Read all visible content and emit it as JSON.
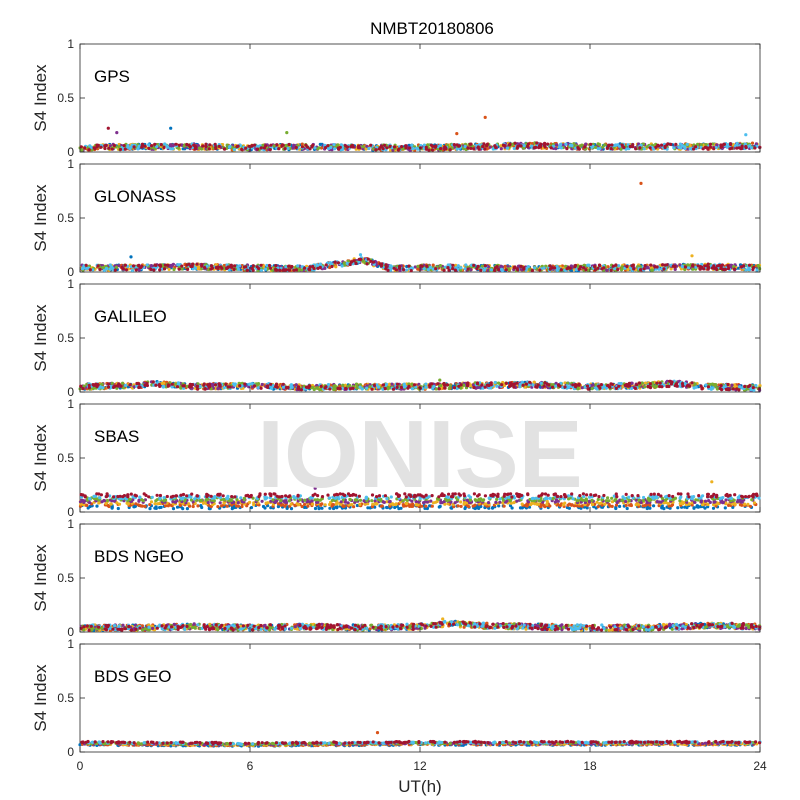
{
  "chart_data": {
    "type": "scatter",
    "title": "NMBT20180806",
    "xlabel": "UT(h)",
    "ylabel": "S4 Index",
    "xlim": [
      0,
      24
    ],
    "ylim": [
      0,
      1
    ],
    "xticks": [
      "0",
      "6",
      "12",
      "18",
      "24"
    ],
    "yticks": [
      "0",
      "0.5",
      "1"
    ],
    "grid": false,
    "watermark": "IONISE",
    "series_colors": [
      "#0072bd",
      "#d95319",
      "#edb120",
      "#7e2f8e",
      "#77ac30",
      "#4dbeee",
      "#a2142f"
    ],
    "panels": [
      {
        "name": "GPS",
        "baseline": [
          [
            0,
            0.05
          ],
          [
            2,
            0.06
          ],
          [
            4,
            0.06
          ],
          [
            6,
            0.05
          ],
          [
            8,
            0.06
          ],
          [
            10,
            0.05
          ],
          [
            12,
            0.05
          ],
          [
            14,
            0.06
          ],
          [
            16,
            0.07
          ],
          [
            18,
            0.06
          ],
          [
            20,
            0.06
          ],
          [
            22,
            0.06
          ],
          [
            24,
            0.07
          ]
        ],
        "outliers": [
          [
            1,
            0.22,
            6
          ],
          [
            3.2,
            0.22,
            0
          ],
          [
            7.3,
            0.18,
            4
          ],
          [
            13.3,
            0.17,
            1
          ],
          [
            14.3,
            0.32,
            1
          ],
          [
            1.3,
            0.18,
            3
          ],
          [
            23.5,
            0.16,
            5
          ]
        ]
      },
      {
        "name": "GLONASS",
        "baseline": [
          [
            0,
            0.05
          ],
          [
            2,
            0.05
          ],
          [
            4,
            0.06
          ],
          [
            6,
            0.05
          ],
          [
            8,
            0.04
          ],
          [
            9,
            0.08
          ],
          [
            10,
            0.12
          ],
          [
            11,
            0.04
          ],
          [
            12,
            0.05
          ],
          [
            14,
            0.05
          ],
          [
            16,
            0.04
          ],
          [
            18,
            0.05
          ],
          [
            20,
            0.05
          ],
          [
            22,
            0.06
          ],
          [
            24,
            0.05
          ]
        ],
        "outliers": [
          [
            19.8,
            0.82,
            1
          ],
          [
            1.8,
            0.14,
            0
          ],
          [
            9.9,
            0.16,
            5
          ],
          [
            21.6,
            0.15,
            2
          ]
        ]
      },
      {
        "name": "GALILEO",
        "baseline": [
          [
            0,
            0.06
          ],
          [
            2,
            0.07
          ],
          [
            2.5,
            0.09
          ],
          [
            4,
            0.06
          ],
          [
            6,
            0.07
          ],
          [
            8,
            0.05
          ],
          [
            10,
            0.06
          ],
          [
            12,
            0.06
          ],
          [
            14,
            0.07
          ],
          [
            16,
            0.08
          ],
          [
            18,
            0.06
          ],
          [
            20,
            0.07
          ],
          [
            21,
            0.09
          ],
          [
            22,
            0.06
          ],
          [
            24,
            0.05
          ]
        ],
        "outliers": [
          [
            12.7,
            0.11,
            4
          ]
        ]
      },
      {
        "name": "SBAS",
        "baseline": [
          [
            0,
            0.1
          ],
          [
            24,
            0.1
          ]
        ],
        "band": true,
        "outliers": [
          [
            8.3,
            0.22,
            3
          ],
          [
            22.3,
            0.28,
            2
          ]
        ]
      },
      {
        "name": "BDS NGEO",
        "baseline": [
          [
            0,
            0.05
          ],
          [
            2,
            0.05
          ],
          [
            4,
            0.06
          ],
          [
            6,
            0.05
          ],
          [
            8,
            0.06
          ],
          [
            10,
            0.05
          ],
          [
            12,
            0.06
          ],
          [
            13,
            0.09
          ],
          [
            14,
            0.07
          ],
          [
            16,
            0.06
          ],
          [
            18,
            0.05
          ],
          [
            20,
            0.05
          ],
          [
            22,
            0.07
          ],
          [
            24,
            0.06
          ]
        ],
        "outliers": [
          [
            12.8,
            0.12,
            2
          ]
        ]
      },
      {
        "name": "BDS GEO",
        "baseline": [
          [
            0,
            0.08
          ],
          [
            6,
            0.07
          ],
          [
            12,
            0.08
          ],
          [
            18,
            0.08
          ],
          [
            24,
            0.08
          ]
        ],
        "flat": true,
        "outliers": [
          [
            10.5,
            0.18,
            1
          ]
        ]
      }
    ]
  }
}
